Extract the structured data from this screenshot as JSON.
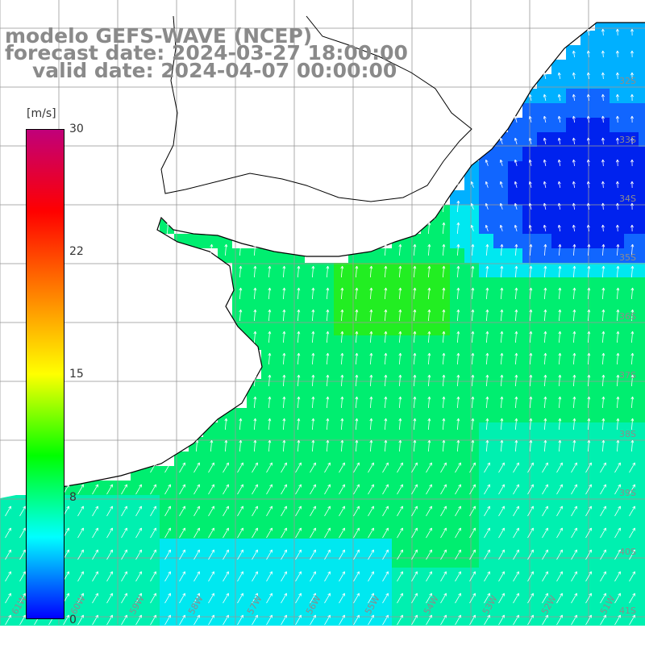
{
  "header": {
    "line1": "modelo GEFS-WAVE (NCEP)",
    "line2": "forecast date: 2024-03-27 18:00:00",
    "line3": "valid date: 2024-04-07 00:00:00"
  },
  "colorbar": {
    "unit": "[m/s]",
    "ticks": [
      "30",
      "22",
      "15",
      "8",
      "0"
    ],
    "colors": [
      "#0000ff",
      "#00ffff",
      "#00ff00",
      "#ffff00",
      "#ff8000",
      "#ff0000",
      "#c0007a"
    ]
  },
  "axes": {
    "lat_labels": [
      "32S",
      "33S",
      "34S",
      "35S",
      "36S",
      "37S",
      "38S",
      "39S",
      "40S",
      "41S"
    ],
    "lon_labels": [
      "61W",
      "60W",
      "59W",
      "58W",
      "57W",
      "56W",
      "55W",
      "54W",
      "53W",
      "52W",
      "51W"
    ]
  },
  "map": {
    "land_color": "#ffffff",
    "coast_color": "#000000",
    "grid_color": "#999999",
    "arrow_color": "#ffffff",
    "field_palette": [
      "#0022ee",
      "#1166ff",
      "#00b0ff",
      "#00e8f0",
      "#00f0b0",
      "#00ee70",
      "#22ee22"
    ]
  }
}
